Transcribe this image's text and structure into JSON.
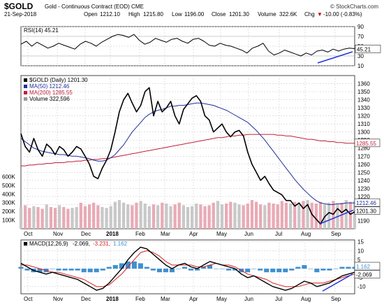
{
  "header": {
    "symbol": "$GOLD",
    "description": "Gold - Continuous Contract (EOD) CME",
    "brand": "© StockCharts.com",
    "date": "21-Sep-2018",
    "open_label": "Open",
    "open_value": "1212.10",
    "high_label": "High",
    "high_value": "1215.80",
    "low_label": "Low",
    "low_value": "1196.00",
    "close_label": "Close",
    "close_value": "1201.30",
    "volume_label": "Volume",
    "volume_value": "322.6K",
    "chg_label": "Chg",
    "chg_value": "-10.00 (-0.83%)",
    "chg_arrow": "▼"
  },
  "colors": {
    "price": "#000000",
    "ma50": "#1f2f9a",
    "ma200": "#c0203a",
    "volume": "#c8c8c8",
    "volume_down": "#e9aab5",
    "rsi": "#000000",
    "macd": "#000000",
    "signal": "#d82020",
    "histogram": "#3f8fcf",
    "trendline": "#2233dd",
    "grid": "#c4c4c4"
  },
  "chart_data": [
    {
      "type": "line",
      "panel": "RSI",
      "legend": "RSI(14) 45.21",
      "ylim": [
        10,
        90
      ],
      "y_ticks": [
        10,
        30,
        50,
        70,
        90
      ],
      "value_label": "45.21",
      "series": [
        {
          "name": "RSI(14)",
          "values": [
            54,
            60,
            50,
            58,
            52,
            46,
            50,
            56,
            52,
            48,
            44,
            54,
            60,
            56,
            50,
            58,
            64,
            70,
            74,
            72,
            68,
            74,
            62,
            54,
            58,
            66,
            62,
            58,
            64,
            66,
            60,
            56,
            64,
            66,
            60,
            52,
            50,
            56,
            52,
            50,
            46,
            42,
            36,
            46,
            50,
            56,
            40,
            32,
            36,
            42,
            38,
            34,
            30,
            36,
            32,
            40,
            42,
            38,
            44,
            40,
            44,
            46,
            45
          ]
        }
      ]
    },
    {
      "type": "line",
      "panel": "Price",
      "legend": [
        "$GOLD (Daily) 1201.30",
        "MA(50) 1212.46",
        "MA(200) 1285.55",
        "Volume 322,596"
      ],
      "ylim": [
        1180,
        1370
      ],
      "y_ticks": [
        1190,
        1200,
        1210,
        1220,
        1230,
        1240,
        1250,
        1260,
        1270,
        1280,
        1290,
        1300,
        1310,
        1320,
        1330,
        1340,
        1350,
        1360
      ],
      "volume_ticks": [
        "100K",
        "200K",
        "300K",
        "400K",
        "500K",
        "600K"
      ],
      "value_labels": {
        "ma50": "1212.46",
        "close": "1201.30",
        "ma200": "1285.55"
      },
      "x_labels": [
        "Oct",
        "Nov",
        "Dec",
        "2018",
        "Feb",
        "Mar",
        "Apr",
        "May",
        "Jun",
        "Jul",
        "Aug",
        "Sep"
      ],
      "series": [
        {
          "name": "$GOLD (Daily)",
          "values": [
            1298,
            1282,
            1275,
            1292,
            1278,
            1270,
            1285,
            1280,
            1272,
            1282,
            1278,
            1270,
            1275,
            1282,
            1279,
            1270,
            1260,
            1245,
            1242,
            1255,
            1265,
            1278,
            1300,
            1325,
            1340,
            1348,
            1336,
            1325,
            1333,
            1350,
            1355,
            1320,
            1338,
            1325,
            1330,
            1338,
            1320,
            1310,
            1328,
            1335,
            1342,
            1345,
            1338,
            1320,
            1315,
            1300,
            1305,
            1310,
            1300,
            1294,
            1300,
            1302,
            1295,
            1275,
            1260,
            1250,
            1240,
            1245,
            1236,
            1228,
            1225,
            1222,
            1215,
            1215,
            1208,
            1212,
            1205,
            1210,
            1198,
            1192,
            1186,
            1195,
            1200,
            1198,
            1205,
            1200,
            1204,
            1198,
            1201
          ]
        },
        {
          "name": "MA(50)",
          "values": [
            1292,
            1288,
            1284,
            1280,
            1278,
            1276,
            1275,
            1274,
            1273,
            1272,
            1272,
            1271,
            1270,
            1270,
            1269,
            1268,
            1267,
            1265,
            1264,
            1264,
            1265,
            1268,
            1272,
            1278,
            1284,
            1292,
            1300,
            1306,
            1312,
            1318,
            1322,
            1325,
            1327,
            1328,
            1330,
            1332,
            1332,
            1333,
            1333,
            1334,
            1335,
            1336,
            1336,
            1335,
            1334,
            1333,
            1331,
            1329,
            1327,
            1324,
            1321,
            1318,
            1315,
            1312,
            1307,
            1302,
            1296,
            1290,
            1283,
            1276,
            1269,
            1262,
            1255,
            1248,
            1241,
            1235,
            1229,
            1224,
            1219,
            1215,
            1212,
            1211,
            1210,
            1210,
            1211,
            1211,
            1212,
            1212,
            1212
          ]
        },
        {
          "name": "MA(200)",
          "values": [
            1258,
            1258,
            1259,
            1259,
            1260,
            1260,
            1261,
            1261,
            1262,
            1262,
            1262,
            1263,
            1263,
            1264,
            1264,
            1265,
            1265,
            1266,
            1266,
            1267,
            1267,
            1268,
            1269,
            1270,
            1271,
            1272,
            1273,
            1274,
            1275,
            1276,
            1277,
            1278,
            1279,
            1280,
            1281,
            1282,
            1283,
            1284,
            1285,
            1286,
            1287,
            1288,
            1289,
            1290,
            1291,
            1292,
            1293,
            1293,
            1294,
            1295,
            1295,
            1296,
            1296,
            1297,
            1297,
            1297,
            1297,
            1297,
            1297,
            1297,
            1296,
            1296,
            1295,
            1295,
            1294,
            1293,
            1292,
            1291,
            1291,
            1290,
            1289,
            1289,
            1288,
            1288,
            1287,
            1287,
            1286,
            1286,
            1286
          ]
        },
        {
          "name": "Volume",
          "values": [
            250,
            270,
            240,
            260,
            250,
            230,
            280,
            250,
            240,
            270,
            250,
            230,
            240,
            250,
            300,
            260,
            280,
            300,
            270,
            250,
            240,
            260,
            310,
            330,
            300,
            280,
            270,
            300,
            320,
            290,
            260,
            280,
            270,
            300,
            290,
            260,
            280,
            300,
            270,
            250,
            260,
            290,
            280,
            260,
            270,
            300,
            320,
            280,
            290,
            310,
            300,
            280,
            270,
            290,
            330,
            310,
            280,
            270,
            300,
            290,
            280,
            320,
            300,
            290,
            310,
            280,
            320,
            330,
            300,
            290,
            310,
            280,
            300,
            320,
            290,
            300,
            330,
            310,
            322
          ]
        }
      ]
    },
    {
      "type": "line",
      "panel": "MACD",
      "legend_name": "MACD(12,26,9)",
      "legend_values": [
        "-2.069,",
        "-3.231,",
        "1.162"
      ],
      "ylim": [
        -14,
        16
      ],
      "y_ticks": [
        -10,
        -5,
        0,
        5,
        10,
        15
      ],
      "value_labels": [
        "1.162",
        "-2.069"
      ],
      "series": [
        {
          "name": "MACD",
          "values": [
            3,
            1,
            -1,
            -2,
            -3,
            -2,
            -3,
            -4,
            -5,
            -6,
            -8,
            -10,
            -12,
            -11,
            -8,
            -4,
            0,
            5,
            9,
            12,
            11,
            8,
            5,
            2,
            0,
            2,
            3,
            1,
            0,
            2,
            4,
            3,
            2,
            1,
            0,
            -3,
            -5,
            -4,
            -6,
            -8,
            -10,
            -11,
            -12,
            -11,
            -9,
            -7,
            -8,
            -10,
            -9,
            -8,
            -6,
            -4,
            -3,
            -2
          ]
        },
        {
          "name": "Signal",
          "values": [
            2,
            2,
            1,
            0,
            -1,
            -2,
            -2,
            -3,
            -4,
            -5,
            -6,
            -8,
            -10,
            -10,
            -9,
            -6,
            -3,
            1,
            5,
            9,
            10,
            9,
            7,
            4,
            2,
            2,
            2,
            2,
            1,
            1,
            2,
            3,
            2,
            2,
            1,
            -1,
            -3,
            -4,
            -5,
            -6,
            -8,
            -9,
            -10,
            -10,
            -10,
            -9,
            -8,
            -8,
            -8,
            -7,
            -6,
            -5,
            -4,
            -3
          ]
        },
        {
          "name": "Histogram",
          "values": [
            1,
            -1,
            -2,
            -2,
            -2,
            0,
            -1,
            -1,
            -1,
            -1,
            -2,
            -2,
            -2,
            -1,
            1,
            2,
            3,
            4,
            4,
            3,
            1,
            -1,
            -2,
            -2,
            -2,
            0,
            1,
            -1,
            -1,
            1,
            2,
            0,
            0,
            -1,
            -1,
            -2,
            -2,
            0,
            -1,
            -2,
            -2,
            -2,
            -2,
            -1,
            1,
            2,
            0,
            -2,
            -1,
            -1,
            0,
            1,
            1,
            1
          ]
        }
      ]
    }
  ]
}
